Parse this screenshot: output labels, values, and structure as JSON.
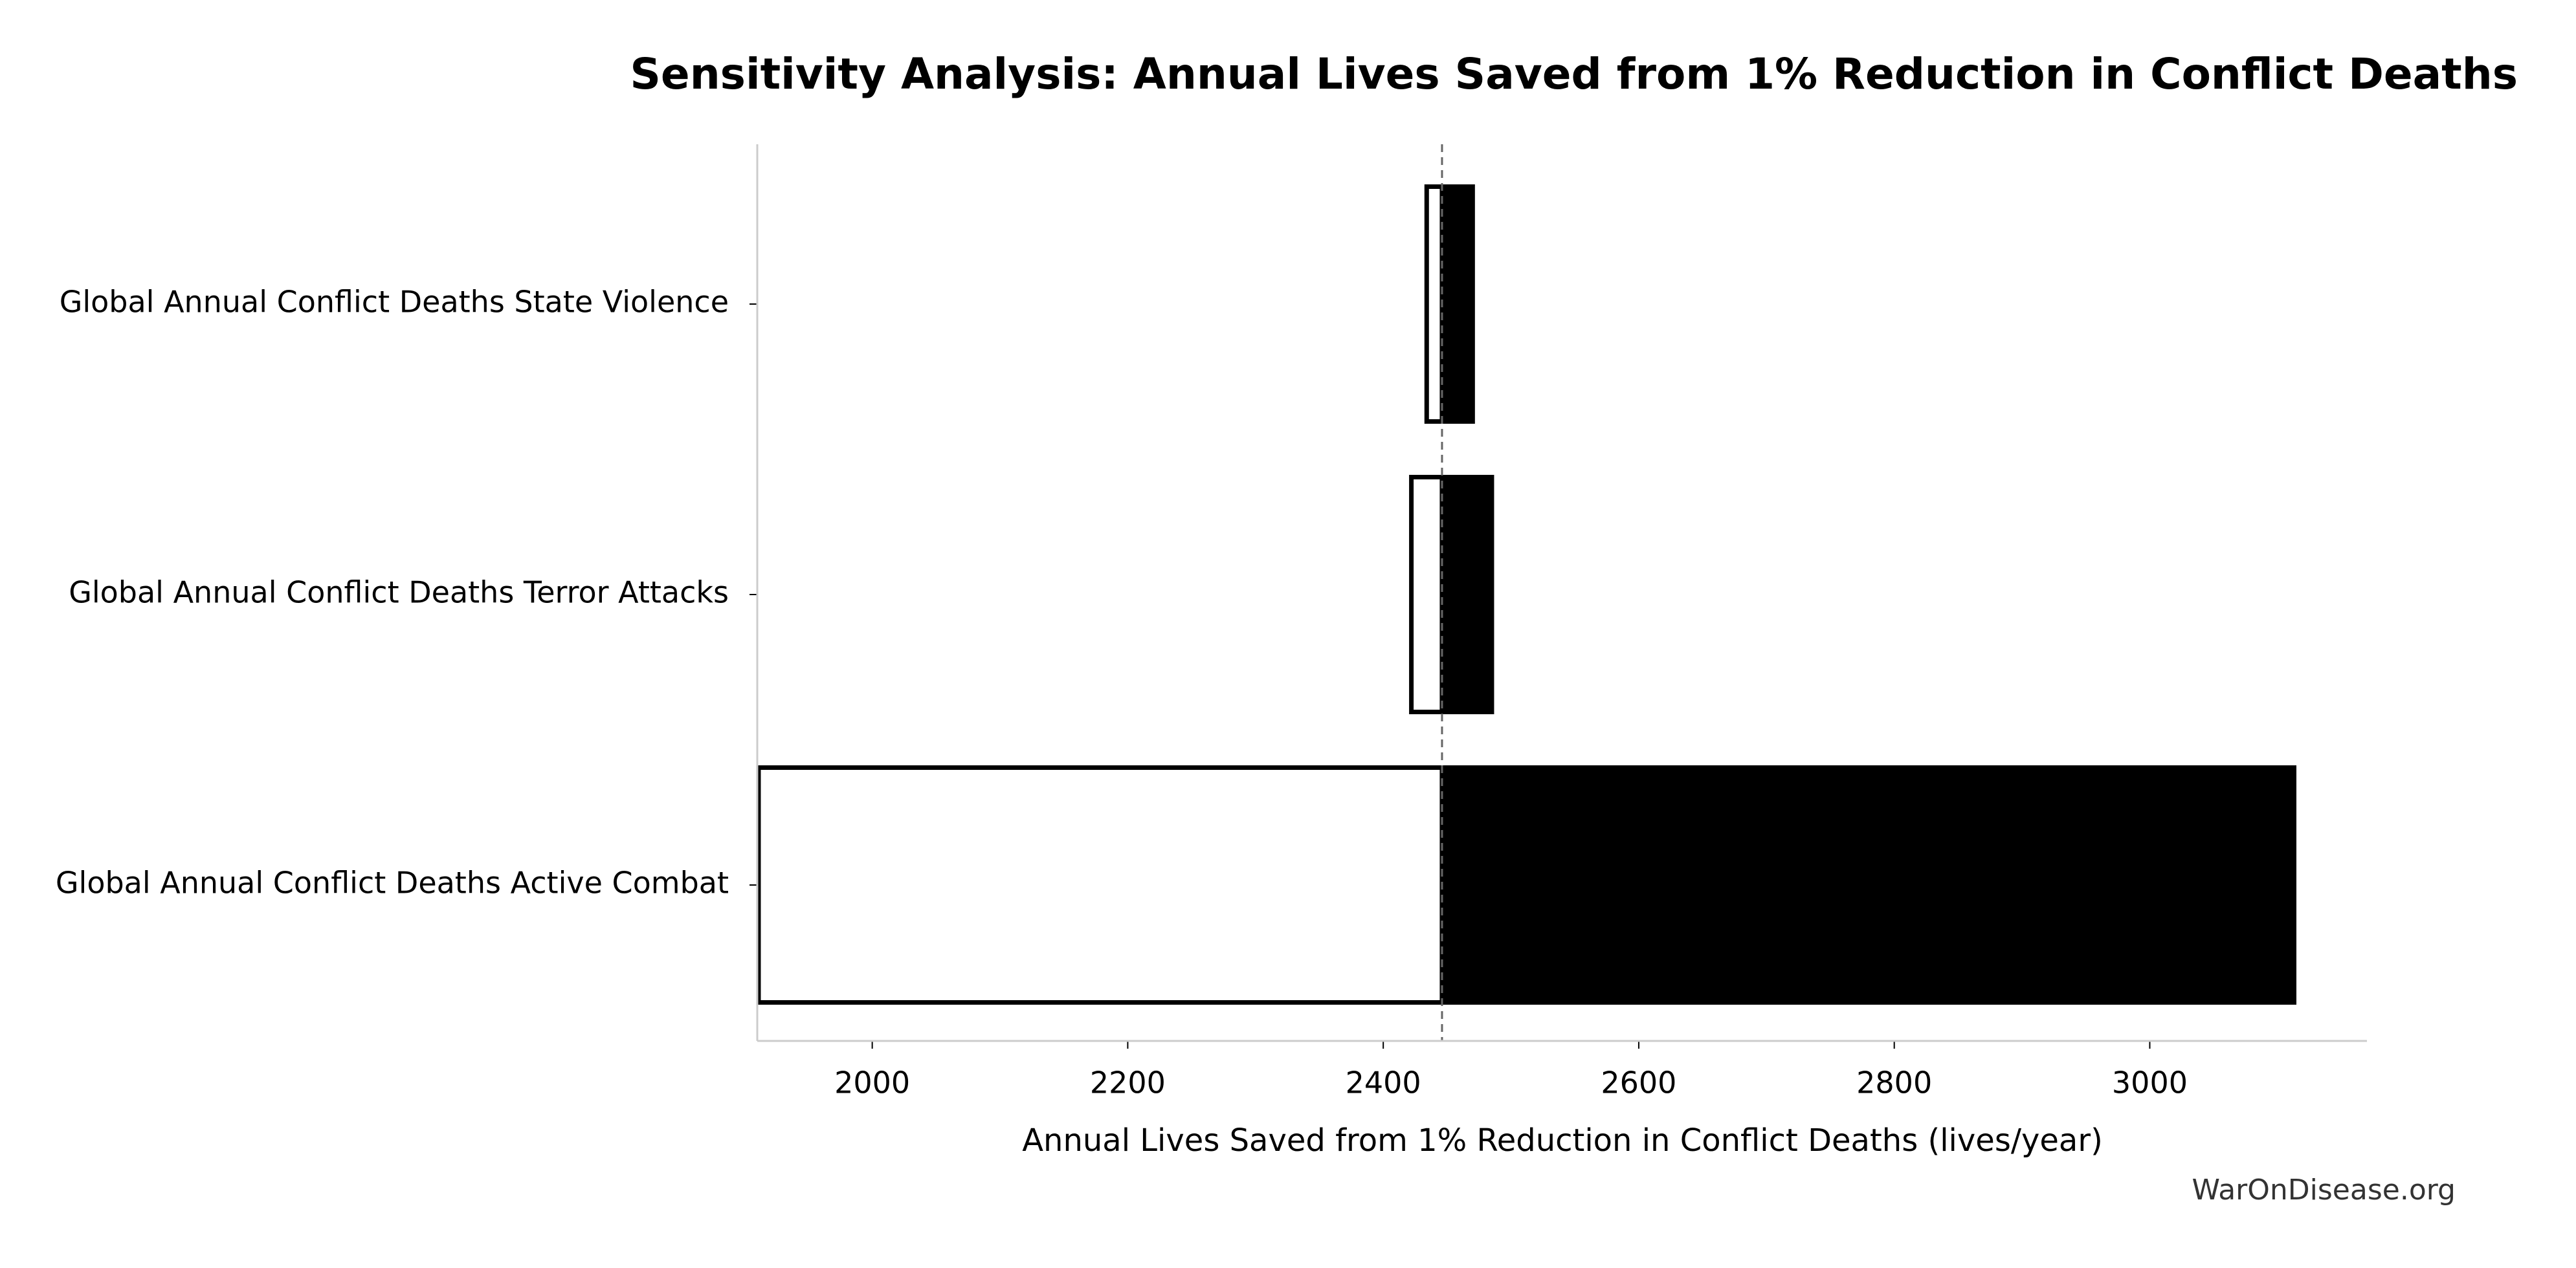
{
  "chart_data": {
    "type": "tornado",
    "title": "Sensitivity Analysis: Annual Lives Saved from 1% Reduction in Conflict Deaths",
    "x_label": "Annual Lives Saved from 1% Reduction in Conflict Deaths (lives/year)",
    "watermark": "WarOnDisease.org",
    "categories": [
      "Global Annual Conflict Deaths State Violence",
      "Global Annual Conflict Deaths Terror Attacks",
      "Global Annual Conflict Deaths Active Combat"
    ],
    "baseline": 2446,
    "series": [
      {
        "color": "#ffffff",
        "values": [
          2434,
          2422,
          1911
        ]
      },
      {
        "color": "#000000",
        "values": [
          2470,
          2485,
          3113
        ]
      }
    ],
    "xlim": [
      1910,
      3170
    ],
    "xticks": [
      2000,
      2200,
      2400,
      2600,
      2800,
      3000
    ]
  }
}
